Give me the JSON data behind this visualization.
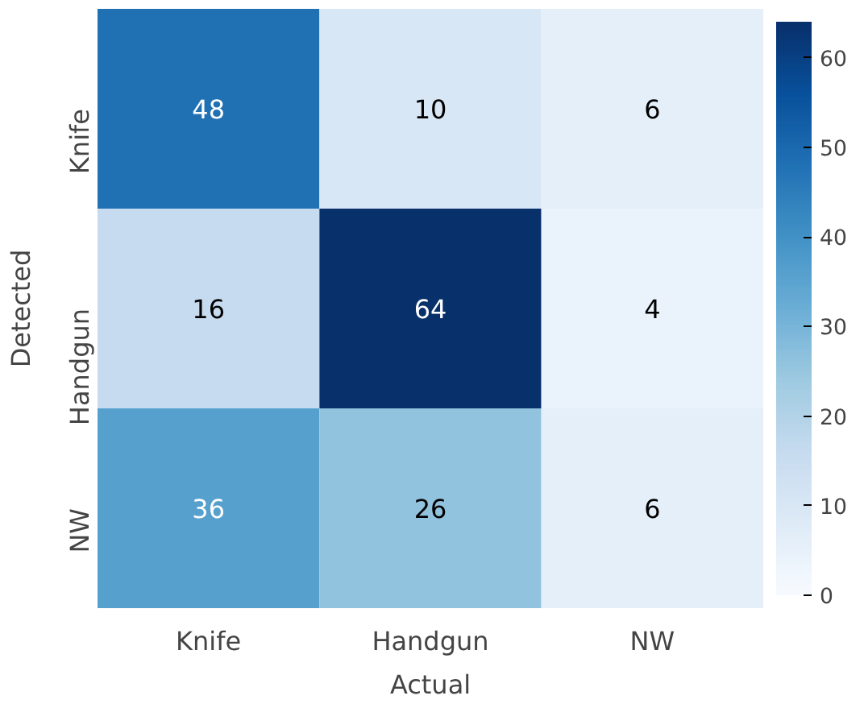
{
  "chart_data": {
    "type": "heatmap",
    "xlabel": "Actual",
    "ylabel": "Detected",
    "categories": [
      "Knife",
      "Handgun",
      "NW"
    ],
    "y_categories": [
      "Knife",
      "Handgun",
      "NW"
    ],
    "cells": [
      [
        48,
        10,
        6
      ],
      [
        16,
        64,
        4
      ],
      [
        36,
        26,
        6
      ]
    ],
    "clim": [
      0,
      64
    ],
    "cticks": [
      0,
      10,
      20,
      30,
      40,
      50,
      60
    ],
    "data_labels": true
  }
}
